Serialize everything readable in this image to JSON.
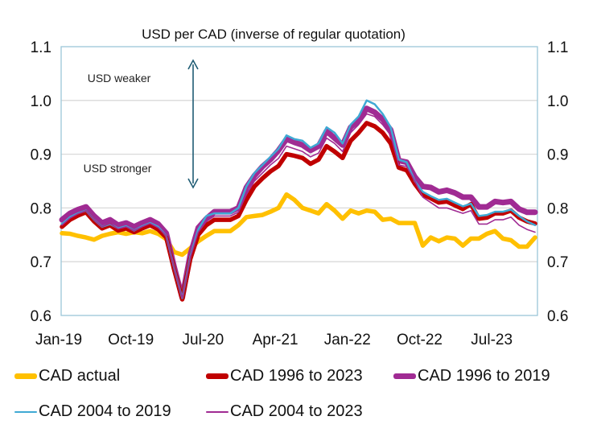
{
  "chart_data": {
    "type": "line",
    "title": "USD per CAD (inverse of regular quotation)",
    "annotations": [
      "USD weaker",
      "USD stronger"
    ],
    "ylim": [
      0.6,
      1.1
    ],
    "yticks": [
      "0.6",
      "0.7",
      "0.8",
      "0.9",
      "1.0",
      "1.1"
    ],
    "secondary_yticks": [
      "0.6",
      "0.7",
      "0.8",
      "0.9",
      "1.0",
      "1.1"
    ],
    "xtick_labels": [
      "Jan-19",
      "Oct-19",
      "Jul-20",
      "Apr-21",
      "Jan-22",
      "Oct-22",
      "Jul-23"
    ],
    "xtick_index": [
      0,
      9,
      18,
      27,
      36,
      45,
      54
    ],
    "grid": "horizontal",
    "legend_placement": "bottom",
    "series": [
      {
        "name": "CAD actual",
        "color": "#FFC000",
        "width": "thick",
        "values": [
          0.753,
          0.752,
          0.748,
          0.745,
          0.741,
          0.748,
          0.752,
          0.755,
          0.752,
          0.755,
          0.753,
          0.757,
          0.752,
          0.742,
          0.718,
          0.713,
          0.725,
          0.738,
          0.748,
          0.757,
          0.757,
          0.757,
          0.768,
          0.783,
          0.785,
          0.787,
          0.793,
          0.8,
          0.825,
          0.815,
          0.8,
          0.795,
          0.79,
          0.807,
          0.795,
          0.78,
          0.795,
          0.79,
          0.795,
          0.793,
          0.778,
          0.78,
          0.772,
          0.772,
          0.772,
          0.73,
          0.745,
          0.738,
          0.745,
          0.743,
          0.73,
          0.743,
          0.743,
          0.752,
          0.757,
          0.743,
          0.74,
          0.728,
          0.728,
          0.745
        ]
      },
      {
        "name": "CAD 1996 to 2023",
        "color": "#C00000",
        "width": "thick",
        "values": [
          0.765,
          0.778,
          0.786,
          0.792,
          0.775,
          0.762,
          0.768,
          0.758,
          0.762,
          0.755,
          0.762,
          0.768,
          0.76,
          0.745,
          0.685,
          0.63,
          0.705,
          0.75,
          0.768,
          0.778,
          0.778,
          0.778,
          0.785,
          0.815,
          0.84,
          0.855,
          0.868,
          0.878,
          0.9,
          0.897,
          0.893,
          0.882,
          0.89,
          0.915,
          0.905,
          0.893,
          0.925,
          0.94,
          0.958,
          0.952,
          0.94,
          0.92,
          0.875,
          0.87,
          0.845,
          0.825,
          0.818,
          0.81,
          0.812,
          0.805,
          0.798,
          0.807,
          0.78,
          0.782,
          0.79,
          0.79,
          0.795,
          0.782,
          0.775,
          0.771
        ]
      },
      {
        "name": "CAD 1996 to 2019",
        "color": "#A02B93",
        "width": "thickest",
        "values": [
          0.778,
          0.79,
          0.797,
          0.802,
          0.785,
          0.772,
          0.778,
          0.768,
          0.772,
          0.765,
          0.772,
          0.778,
          0.77,
          0.753,
          0.69,
          0.633,
          0.713,
          0.763,
          0.78,
          0.793,
          0.793,
          0.793,
          0.8,
          0.838,
          0.86,
          0.877,
          0.89,
          0.907,
          0.928,
          0.922,
          0.917,
          0.907,
          0.915,
          0.943,
          0.93,
          0.917,
          0.95,
          0.962,
          0.985,
          0.978,
          0.965,
          0.945,
          0.888,
          0.885,
          0.858,
          0.84,
          0.838,
          0.83,
          0.833,
          0.828,
          0.82,
          0.82,
          0.802,
          0.802,
          0.812,
          0.81,
          0.812,
          0.798,
          0.792,
          0.792
        ]
      },
      {
        "name": "CAD 2004 to 2019",
        "color": "#3FA9D4",
        "width": "medium",
        "values": [
          0.77,
          0.783,
          0.79,
          0.795,
          0.778,
          0.765,
          0.77,
          0.762,
          0.766,
          0.758,
          0.766,
          0.772,
          0.765,
          0.748,
          0.688,
          0.632,
          0.71,
          0.76,
          0.785,
          0.79,
          0.79,
          0.79,
          0.8,
          0.84,
          0.865,
          0.88,
          0.895,
          0.91,
          0.935,
          0.928,
          0.925,
          0.912,
          0.92,
          0.95,
          0.94,
          0.92,
          0.955,
          0.97,
          1.0,
          0.993,
          0.975,
          0.95,
          0.89,
          0.885,
          0.85,
          0.83,
          0.822,
          0.815,
          0.817,
          0.81,
          0.803,
          0.808,
          0.785,
          0.787,
          0.793,
          0.793,
          0.797,
          0.785,
          0.775,
          0.768
        ]
      },
      {
        "name": "CAD 2004 to 2023",
        "color": "#A02B93",
        "width": "thin",
        "values": [
          0.768,
          0.781,
          0.789,
          0.795,
          0.778,
          0.765,
          0.771,
          0.761,
          0.765,
          0.758,
          0.765,
          0.771,
          0.763,
          0.748,
          0.688,
          0.632,
          0.708,
          0.755,
          0.775,
          0.785,
          0.785,
          0.785,
          0.792,
          0.825,
          0.85,
          0.865,
          0.88,
          0.892,
          0.915,
          0.91,
          0.905,
          0.895,
          0.902,
          0.93,
          0.92,
          0.905,
          0.94,
          0.955,
          0.975,
          0.97,
          0.955,
          0.935,
          0.88,
          0.877,
          0.85,
          0.82,
          0.81,
          0.8,
          0.8,
          0.795,
          0.79,
          0.795,
          0.77,
          0.77,
          0.778,
          0.778,
          0.783,
          0.768,
          0.76,
          0.755
        ]
      }
    ]
  }
}
